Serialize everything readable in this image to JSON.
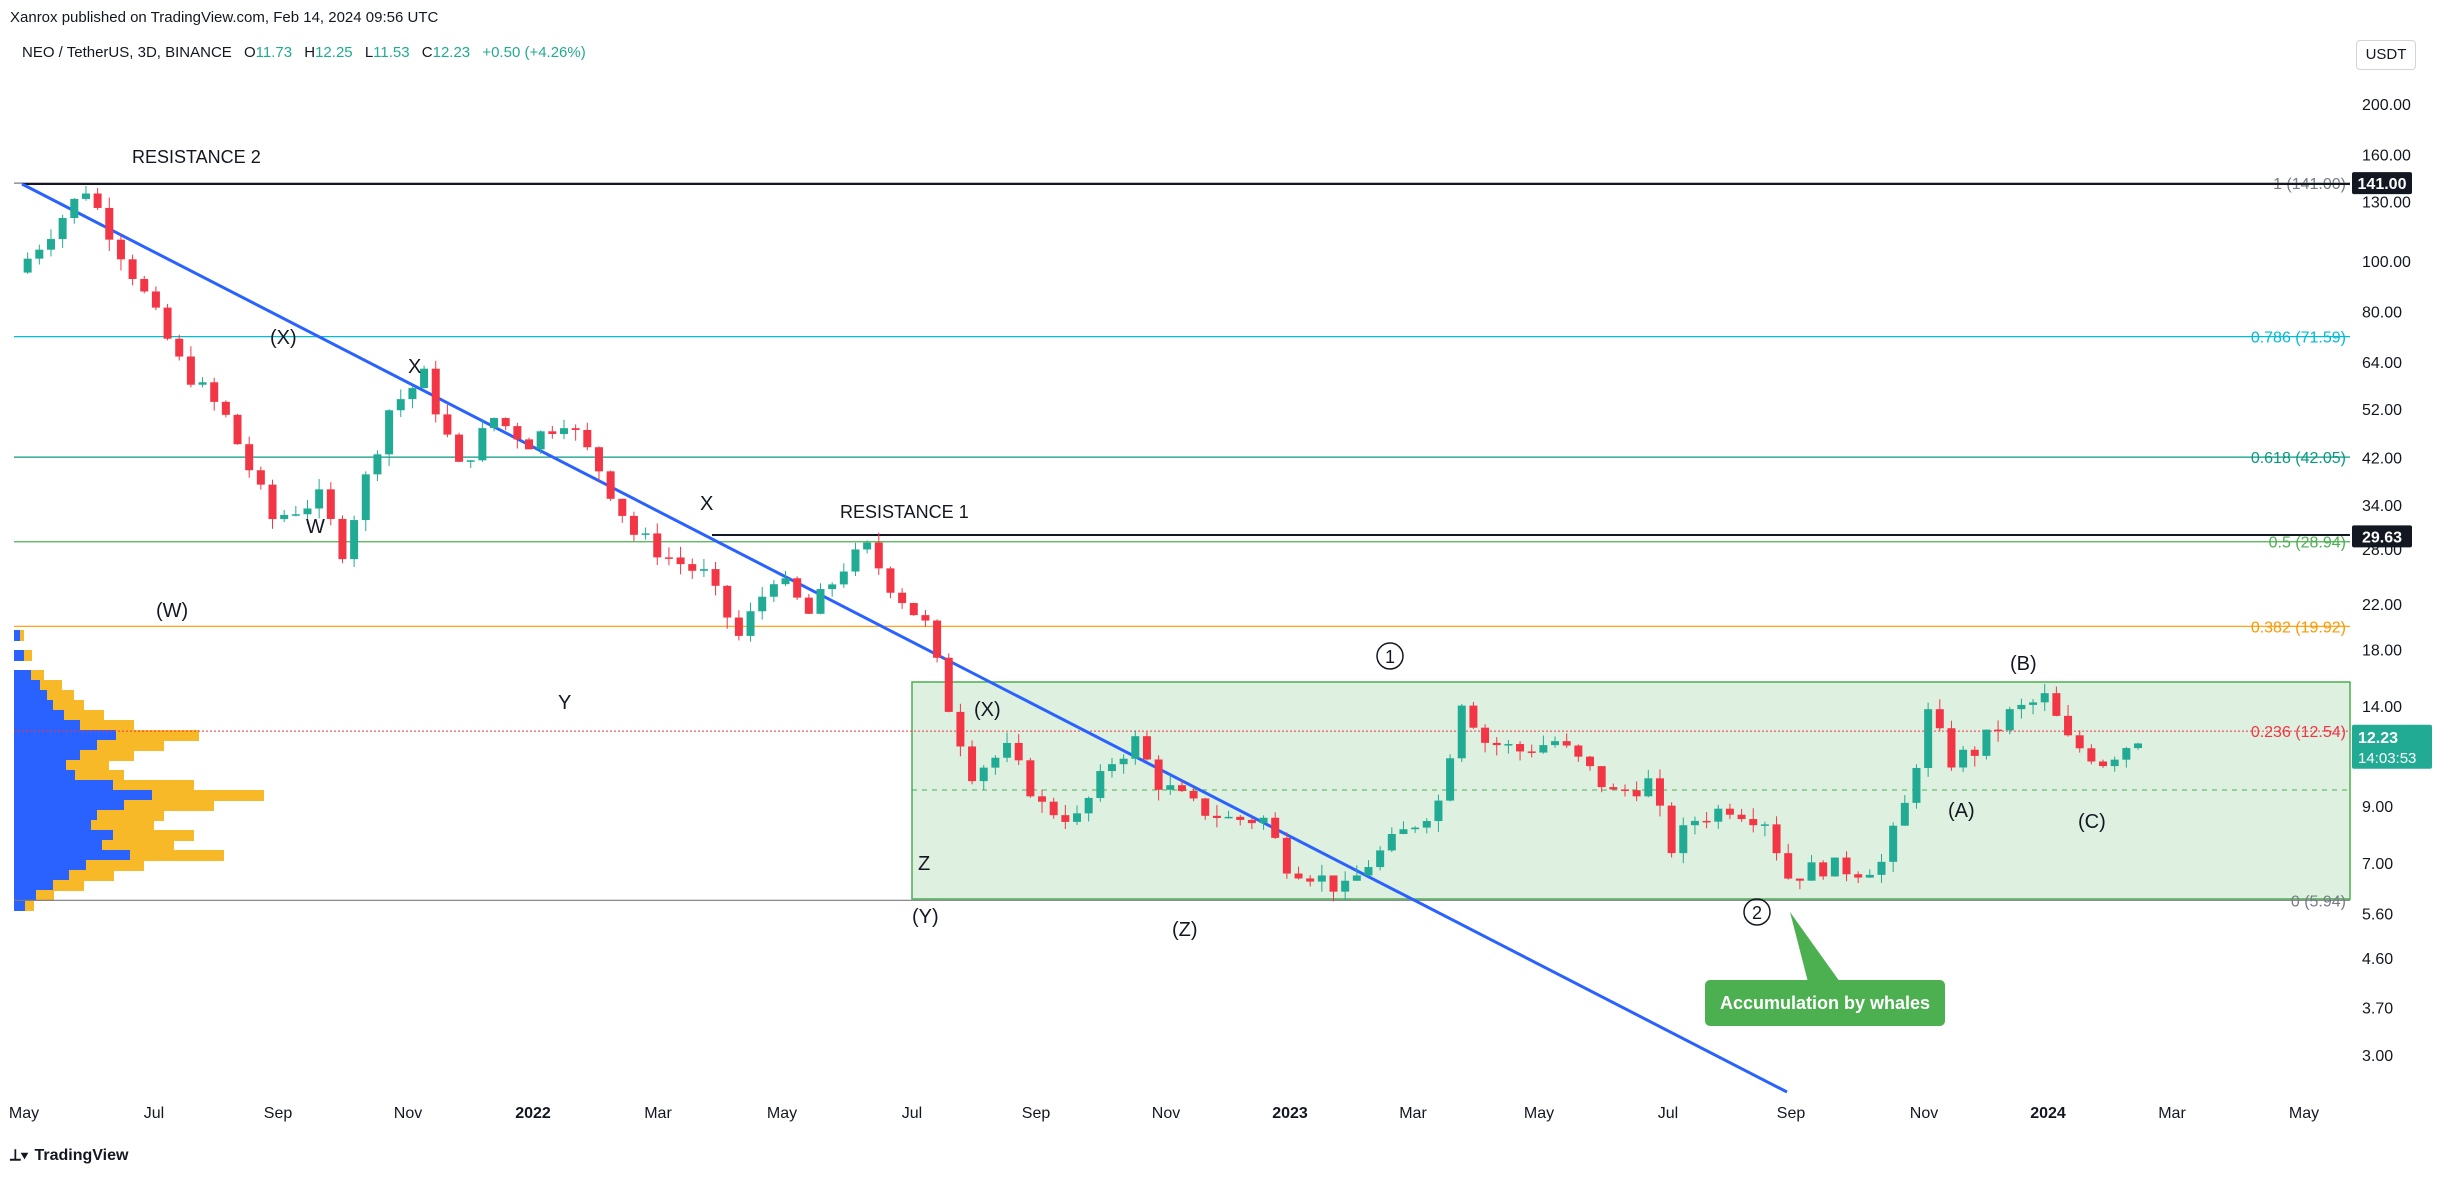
{
  "header": {
    "publisher_note": "Xanrox published on TradingView.com, Feb 14, 2024 09:56 UTC",
    "symbol": "NEO / TetherUS, 3D, BINANCE",
    "open_label": "O",
    "open": "11.73",
    "high_label": "H",
    "high": "12.25",
    "low_label": "L",
    "low": "11.53",
    "close_label": "C",
    "close": "12.23",
    "change": "+0.50 (+4.26%)",
    "currency": "USDT"
  },
  "footer": {
    "brand": "TradingView"
  },
  "colors": {
    "up": "#22ab94",
    "down": "#f23645",
    "trendline": "#2962ff",
    "box_fill": "#c8e6c9",
    "box_border": "#4caf50",
    "volume_blue": "#2962ff",
    "volume_yellow": "#f7b928"
  },
  "chart_data": {
    "type": "candlestick",
    "scale": "log",
    "x_ticks": [
      "May",
      "Jul",
      "Sep",
      "Nov",
      "2022",
      "Mar",
      "May",
      "Jul",
      "Sep",
      "Nov",
      "2023",
      "Mar",
      "May",
      "Jul",
      "Sep",
      "Nov",
      "2024",
      "Mar",
      "May"
    ],
    "y_ticks": [
      "200.00",
      "160.00",
      "130.00",
      "100.00",
      "80.00",
      "64.00",
      "52.00",
      "42.00",
      "34.00",
      "28.00",
      "22.00",
      "18.00",
      "14.00",
      "9.00",
      "7.00",
      "5.60",
      "4.60",
      "3.70",
      "3.00"
    ],
    "price_tags": [
      {
        "label": "141.00",
        "value": 141.0,
        "style": "dark"
      },
      {
        "label": "29.63",
        "value": 29.63,
        "style": "dark"
      },
      {
        "label": "12.23",
        "sublabel": "14:03:53",
        "value": 12.23,
        "style": "green"
      }
    ],
    "fib_levels": [
      {
        "label": "1 (141.00)",
        "value": 141.0,
        "color": "#787b86"
      },
      {
        "label": "0.786 (71.59)",
        "value": 71.59,
        "color": "#00bcd4"
      },
      {
        "label": "0.618 (42.05)",
        "value": 42.05,
        "color": "#089981"
      },
      {
        "label": "0.5 (28.94)",
        "value": 28.94,
        "color": "#4caf50"
      },
      {
        "label": "0.382 (19.92)",
        "value": 19.92,
        "color": "#ff9800"
      },
      {
        "label": "0.236 (12.54)",
        "value": 12.54,
        "color": "#f23645"
      },
      {
        "label": "0 (5.94)",
        "value": 5.94,
        "color": "#787b86"
      }
    ],
    "horizontal_lines": [
      {
        "label": "RESISTANCE 2",
        "value": 141.0
      },
      {
        "label": "RESISTANCE 1",
        "value": 29.63
      }
    ],
    "wave_labels": [
      "(X)",
      "X",
      "W",
      "(W)",
      "X",
      "Y",
      "Z",
      "(X)",
      "(Y)",
      "(Z)",
      "(A)",
      "(B)",
      "(C)"
    ],
    "circled_labels": [
      "1",
      "2"
    ],
    "callout": "Accumulation by whales",
    "price_path": [
      [
        0,
        95
      ],
      [
        6,
        138
      ],
      [
        10,
        95
      ],
      [
        14,
        64
      ],
      [
        18,
        50
      ],
      [
        22,
        32
      ],
      [
        26,
        35
      ],
      [
        28,
        28
      ],
      [
        32,
        52
      ],
      [
        35,
        60
      ],
      [
        38,
        40
      ],
      [
        41,
        50
      ],
      [
        44,
        45
      ],
      [
        47,
        50
      ],
      [
        50,
        40
      ],
      [
        53,
        30
      ],
      [
        56,
        27
      ],
      [
        59,
        25
      ],
      [
        62,
        19
      ],
      [
        65,
        25
      ],
      [
        68,
        21
      ],
      [
        71,
        26
      ],
      [
        73,
        28
      ],
      [
        75,
        24
      ],
      [
        78,
        20
      ],
      [
        80,
        14
      ],
      [
        82,
        10.5
      ],
      [
        85,
        11.5
      ],
      [
        88,
        9
      ],
      [
        91,
        8.5
      ],
      [
        94,
        11
      ],
      [
        96,
        12
      ],
      [
        98,
        10
      ],
      [
        101,
        9
      ],
      [
        104,
        8.5
      ],
      [
        107,
        8.5
      ],
      [
        109,
        7
      ],
      [
        111,
        6.7
      ],
      [
        114,
        6.2
      ],
      [
        116,
        7
      ],
      [
        119,
        8
      ],
      [
        122,
        9.2
      ],
      [
        124,
        14.5
      ],
      [
        126,
        12
      ],
      [
        129,
        11.5
      ],
      [
        132,
        12
      ],
      [
        135,
        10.5
      ],
      [
        137,
        9.5
      ],
      [
        140,
        10
      ],
      [
        142,
        7.5
      ],
      [
        144,
        8.5
      ],
      [
        147,
        9
      ],
      [
        150,
        8.5
      ],
      [
        152,
        6.6
      ],
      [
        155,
        6.9
      ],
      [
        158,
        6.8
      ],
      [
        160,
        7
      ],
      [
        162,
        9
      ],
      [
        164,
        13.5
      ],
      [
        166,
        11
      ],
      [
        168,
        11.5
      ],
      [
        171,
        13.5
      ],
      [
        174,
        14.5
      ],
      [
        176,
        12
      ],
      [
        179,
        11
      ],
      [
        182,
        12.23
      ]
    ]
  },
  "annotations": {
    "resistance2": "RESISTANCE 2",
    "resistance1": "RESISTANCE 1",
    "wave_x_paren_1": "(X)",
    "wave_x_1": "X",
    "wave_w": "W",
    "wave_w_paren": "(W)",
    "wave_x_2": "X",
    "wave_y": "Y",
    "wave_z": "Z",
    "wave_x_paren_2": "(X)",
    "wave_y_paren": "(Y)",
    "wave_z_paren": "(Z)",
    "wave_a": "(A)",
    "wave_b": "(B)",
    "wave_c": "(C)",
    "circle_1": "1",
    "circle_2": "2",
    "callout": "Accumulation by whales"
  }
}
